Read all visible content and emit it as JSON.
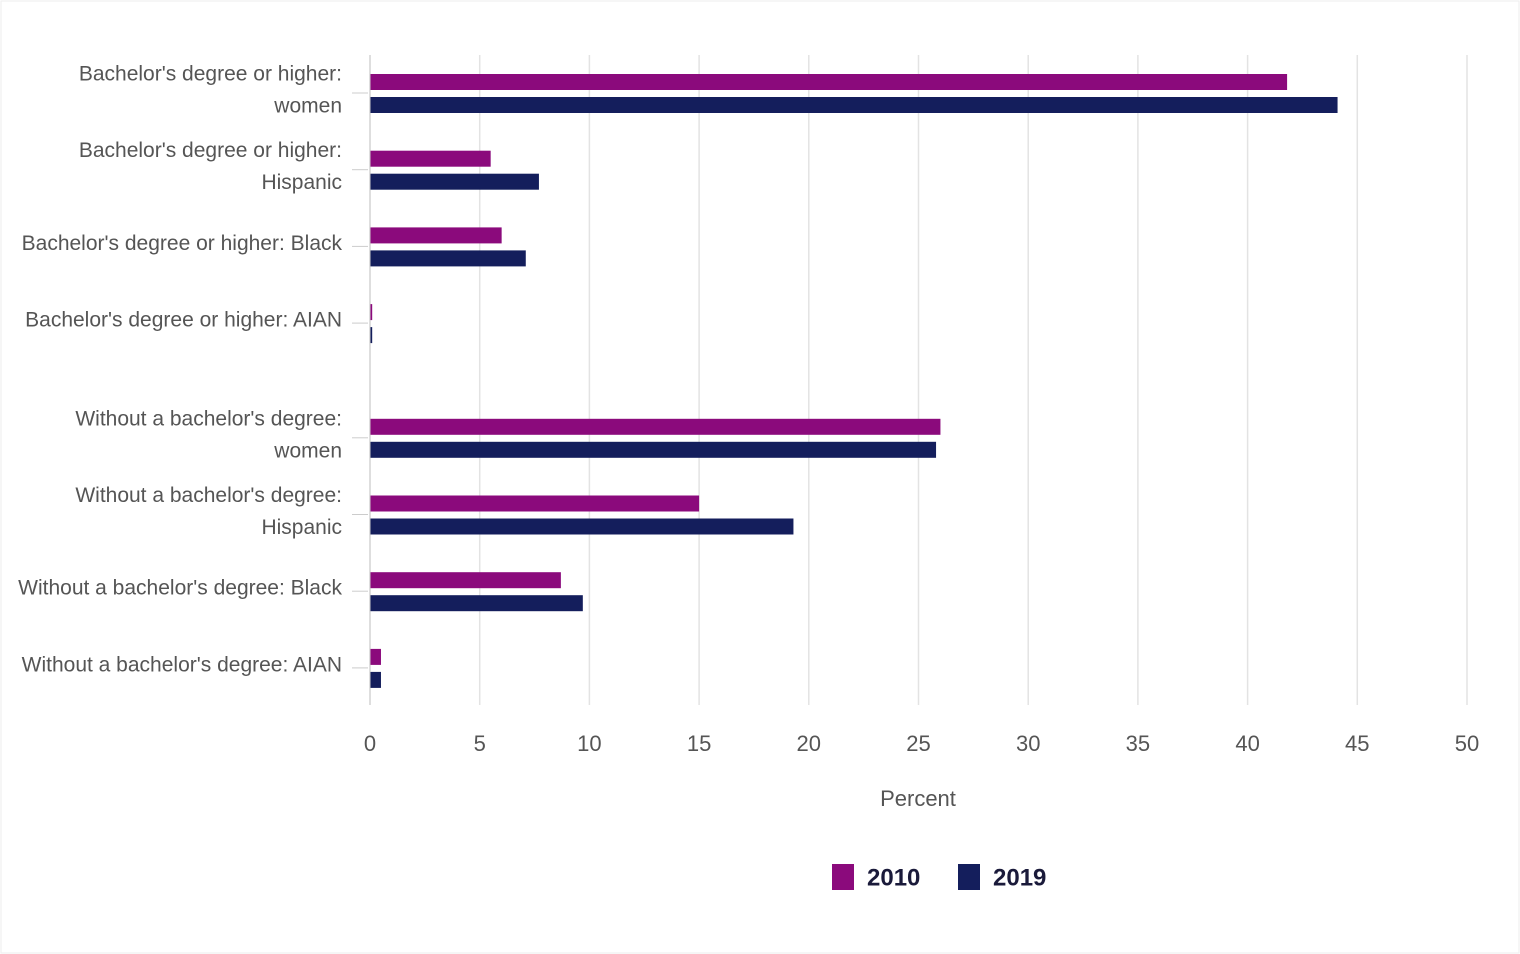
{
  "chart_data": {
    "type": "bar",
    "orientation": "horizontal",
    "categories": [
      [
        "Bachelor's degree or higher:",
        "women"
      ],
      [
        "Bachelor's degree or higher:",
        "Hispanic"
      ],
      [
        "Bachelor's degree or higher: Black"
      ],
      [
        "Bachelor's degree or higher: AIAN"
      ],
      [
        "Without a bachelor's degree:",
        "women"
      ],
      [
        "Without a bachelor's degree:",
        "Hispanic"
      ],
      [
        "Without a bachelor's degree: Black"
      ],
      [
        "Without a bachelor's degree: AIAN"
      ]
    ],
    "series": [
      {
        "name": "2010",
        "color": "#8b0a7c",
        "values": [
          41.8,
          5.5,
          6.0,
          0.1,
          26.0,
          15.0,
          8.7,
          0.5
        ]
      },
      {
        "name": "2019",
        "color": "#141e5c",
        "values": [
          44.1,
          7.7,
          7.1,
          0.1,
          25.8,
          19.3,
          9.7,
          0.5
        ]
      }
    ],
    "xlabel": "Percent",
    "xlim": [
      0,
      50
    ],
    "xticks": [
      0,
      5,
      10,
      15,
      20,
      25,
      30,
      35,
      40,
      45,
      50
    ],
    "grid": true,
    "legend": "bottom"
  }
}
